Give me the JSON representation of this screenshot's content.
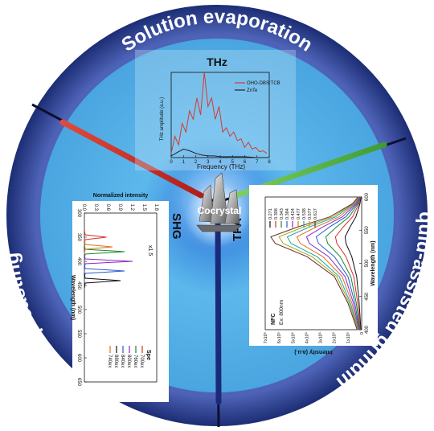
{
  "colors": {
    "outer_ring": "#243a8c",
    "outer_ring_light": "#4e63b7",
    "inner_disk": "#54b3e8",
    "inner_disk_light": "#9ed4f4",
    "panel_bg": "#ffffff",
    "red_rod": "#d8302a",
    "green_rod": "#5cb84a",
    "blue_rod": "#1b2a78",
    "text_white": "#ffffff"
  },
  "ring_labels": {
    "top": "Solution evaporation",
    "right": "Liquid-assisted grinding",
    "left": "Drop casting"
  },
  "center": {
    "label": "Cocrystal"
  },
  "sectors": {
    "shg": "SHG",
    "tpa": "TPA"
  },
  "thz_panel": {
    "title": "THz",
    "xlabel": "Frequency (THz)",
    "ylabel": "THz amplitude (a.u.)",
    "legend": [
      "OHO-DBS:TCB",
      "ZnTe"
    ],
    "x_ticks": [
      "0",
      "1",
      "2",
      "3",
      "4",
      "5",
      "6",
      "7",
      "8"
    ]
  },
  "shg_panel": {
    "ylabel": "Normalized intensity",
    "xlabel": "Wavelength (nm)",
    "y_ticks": [
      "0.0",
      "0.3",
      "0.6",
      "0.9",
      "1.2",
      "1.5",
      "1.8"
    ],
    "x_ticks": [
      "300",
      "350",
      "400",
      "450",
      "500",
      "550",
      "600",
      "650"
    ],
    "scale_label": "x1.5",
    "legend_title": "Spe",
    "legend": [
      "700ex",
      "760ex",
      "800ex",
      "840ex",
      "880ex",
      "740ex"
    ]
  },
  "tpa_panel": {
    "title": "NFC",
    "subtitle": "Ex: 800nm",
    "ylabel": "Intensity (a.u.)",
    "xlabel": "Wavelength (nm)",
    "y_ticks": [
      "0",
      "1x10⁵",
      "2x10⁵",
      "3x10⁵",
      "4x10⁵",
      "5x10⁵",
      "6x10⁵",
      "7x10⁵"
    ],
    "x_ticks": [
      "400",
      "450",
      "500",
      "550",
      "600"
    ],
    "legend": [
      "0.271",
      "0.308",
      "0.343",
      "0.384",
      "0.424",
      "0.477",
      "0.538",
      "0.577",
      "0.617"
    ]
  },
  "chart_data": [
    {
      "type": "line",
      "title": "THz",
      "xlabel": "Frequency (THz)",
      "ylabel": "THz amplitude (a.u.)",
      "xlim": [
        0,
        8
      ],
      "series": [
        {
          "name": "OHO-DBS:TCB",
          "x": [
            0,
            0.3,
            0.6,
            0.9,
            1.2,
            1.5,
            1.8,
            2.1,
            2.4,
            2.7,
            3.0,
            3.3,
            3.6,
            3.9,
            4.2,
            4.5,
            4.8,
            5.1,
            5.4,
            5.7,
            6.0,
            6.3,
            6.6,
            6.9,
            7.2,
            7.5,
            7.8
          ],
          "y": [
            0.05,
            0.25,
            0.15,
            0.4,
            0.3,
            0.55,
            0.45,
            0.7,
            0.5,
            1.0,
            0.6,
            0.7,
            0.45,
            0.6,
            0.3,
            0.35,
            0.25,
            0.3,
            0.2,
            0.22,
            0.12,
            0.18,
            0.1,
            0.12,
            0.07,
            0.08,
            0.05
          ]
        },
        {
          "name": "ZnTe",
          "x": [
            0,
            0.5,
            1.0,
            1.5,
            2.0,
            2.5,
            3.0,
            3.5,
            4.0,
            4.5,
            5.0,
            6.0,
            7.0,
            8.0
          ],
          "y": [
            0.02,
            0.06,
            0.1,
            0.08,
            0.05,
            0.03,
            0.02,
            0.02,
            0.01,
            0.01,
            0.01,
            0.01,
            0.0,
            0.0
          ]
        }
      ]
    },
    {
      "type": "line",
      "title": "SHG",
      "xlabel": "Wavelength (nm)",
      "ylabel": "Normalized intensity",
      "xlim": [
        300,
        650
      ],
      "ylim": [
        0,
        1.8
      ],
      "series": [
        {
          "name": "700ex",
          "peak": 350,
          "y_peak": 0.55
        },
        {
          "name": "760ex",
          "peak": 380,
          "y_peak": 1.0
        },
        {
          "name": "800ex",
          "peak": 400,
          "y_peak": 1.2
        },
        {
          "name": "840ex",
          "peak": 420,
          "y_peak": 1.0
        },
        {
          "name": "880ex",
          "peak": 440,
          "y_peak": 0.9
        },
        {
          "name": "740ex",
          "peak": 370,
          "y_peak": 0.7
        }
      ]
    },
    {
      "type": "line",
      "title": "NFC",
      "xlabel": "Wavelength (nm)",
      "ylabel": "Intensity (a.u.)",
      "xlim": [
        400,
        600
      ],
      "ylim": [
        0,
        700000
      ],
      "series": [
        {
          "name": "0.271",
          "peak": 540,
          "y_peak": 120000
        },
        {
          "name": "0.308",
          "peak": 540,
          "y_peak": 190000
        },
        {
          "name": "0.343",
          "peak": 540,
          "y_peak": 260000
        },
        {
          "name": "0.384",
          "peak": 540,
          "y_peak": 330000
        },
        {
          "name": "0.424",
          "peak": 540,
          "y_peak": 400000
        },
        {
          "name": "0.477",
          "peak": 540,
          "y_peak": 470000
        },
        {
          "name": "0.538",
          "peak": 540,
          "y_peak": 540000
        },
        {
          "name": "0.577",
          "peak": 540,
          "y_peak": 600000
        },
        {
          "name": "0.617",
          "peak": 540,
          "y_peak": 660000
        }
      ]
    }
  ]
}
